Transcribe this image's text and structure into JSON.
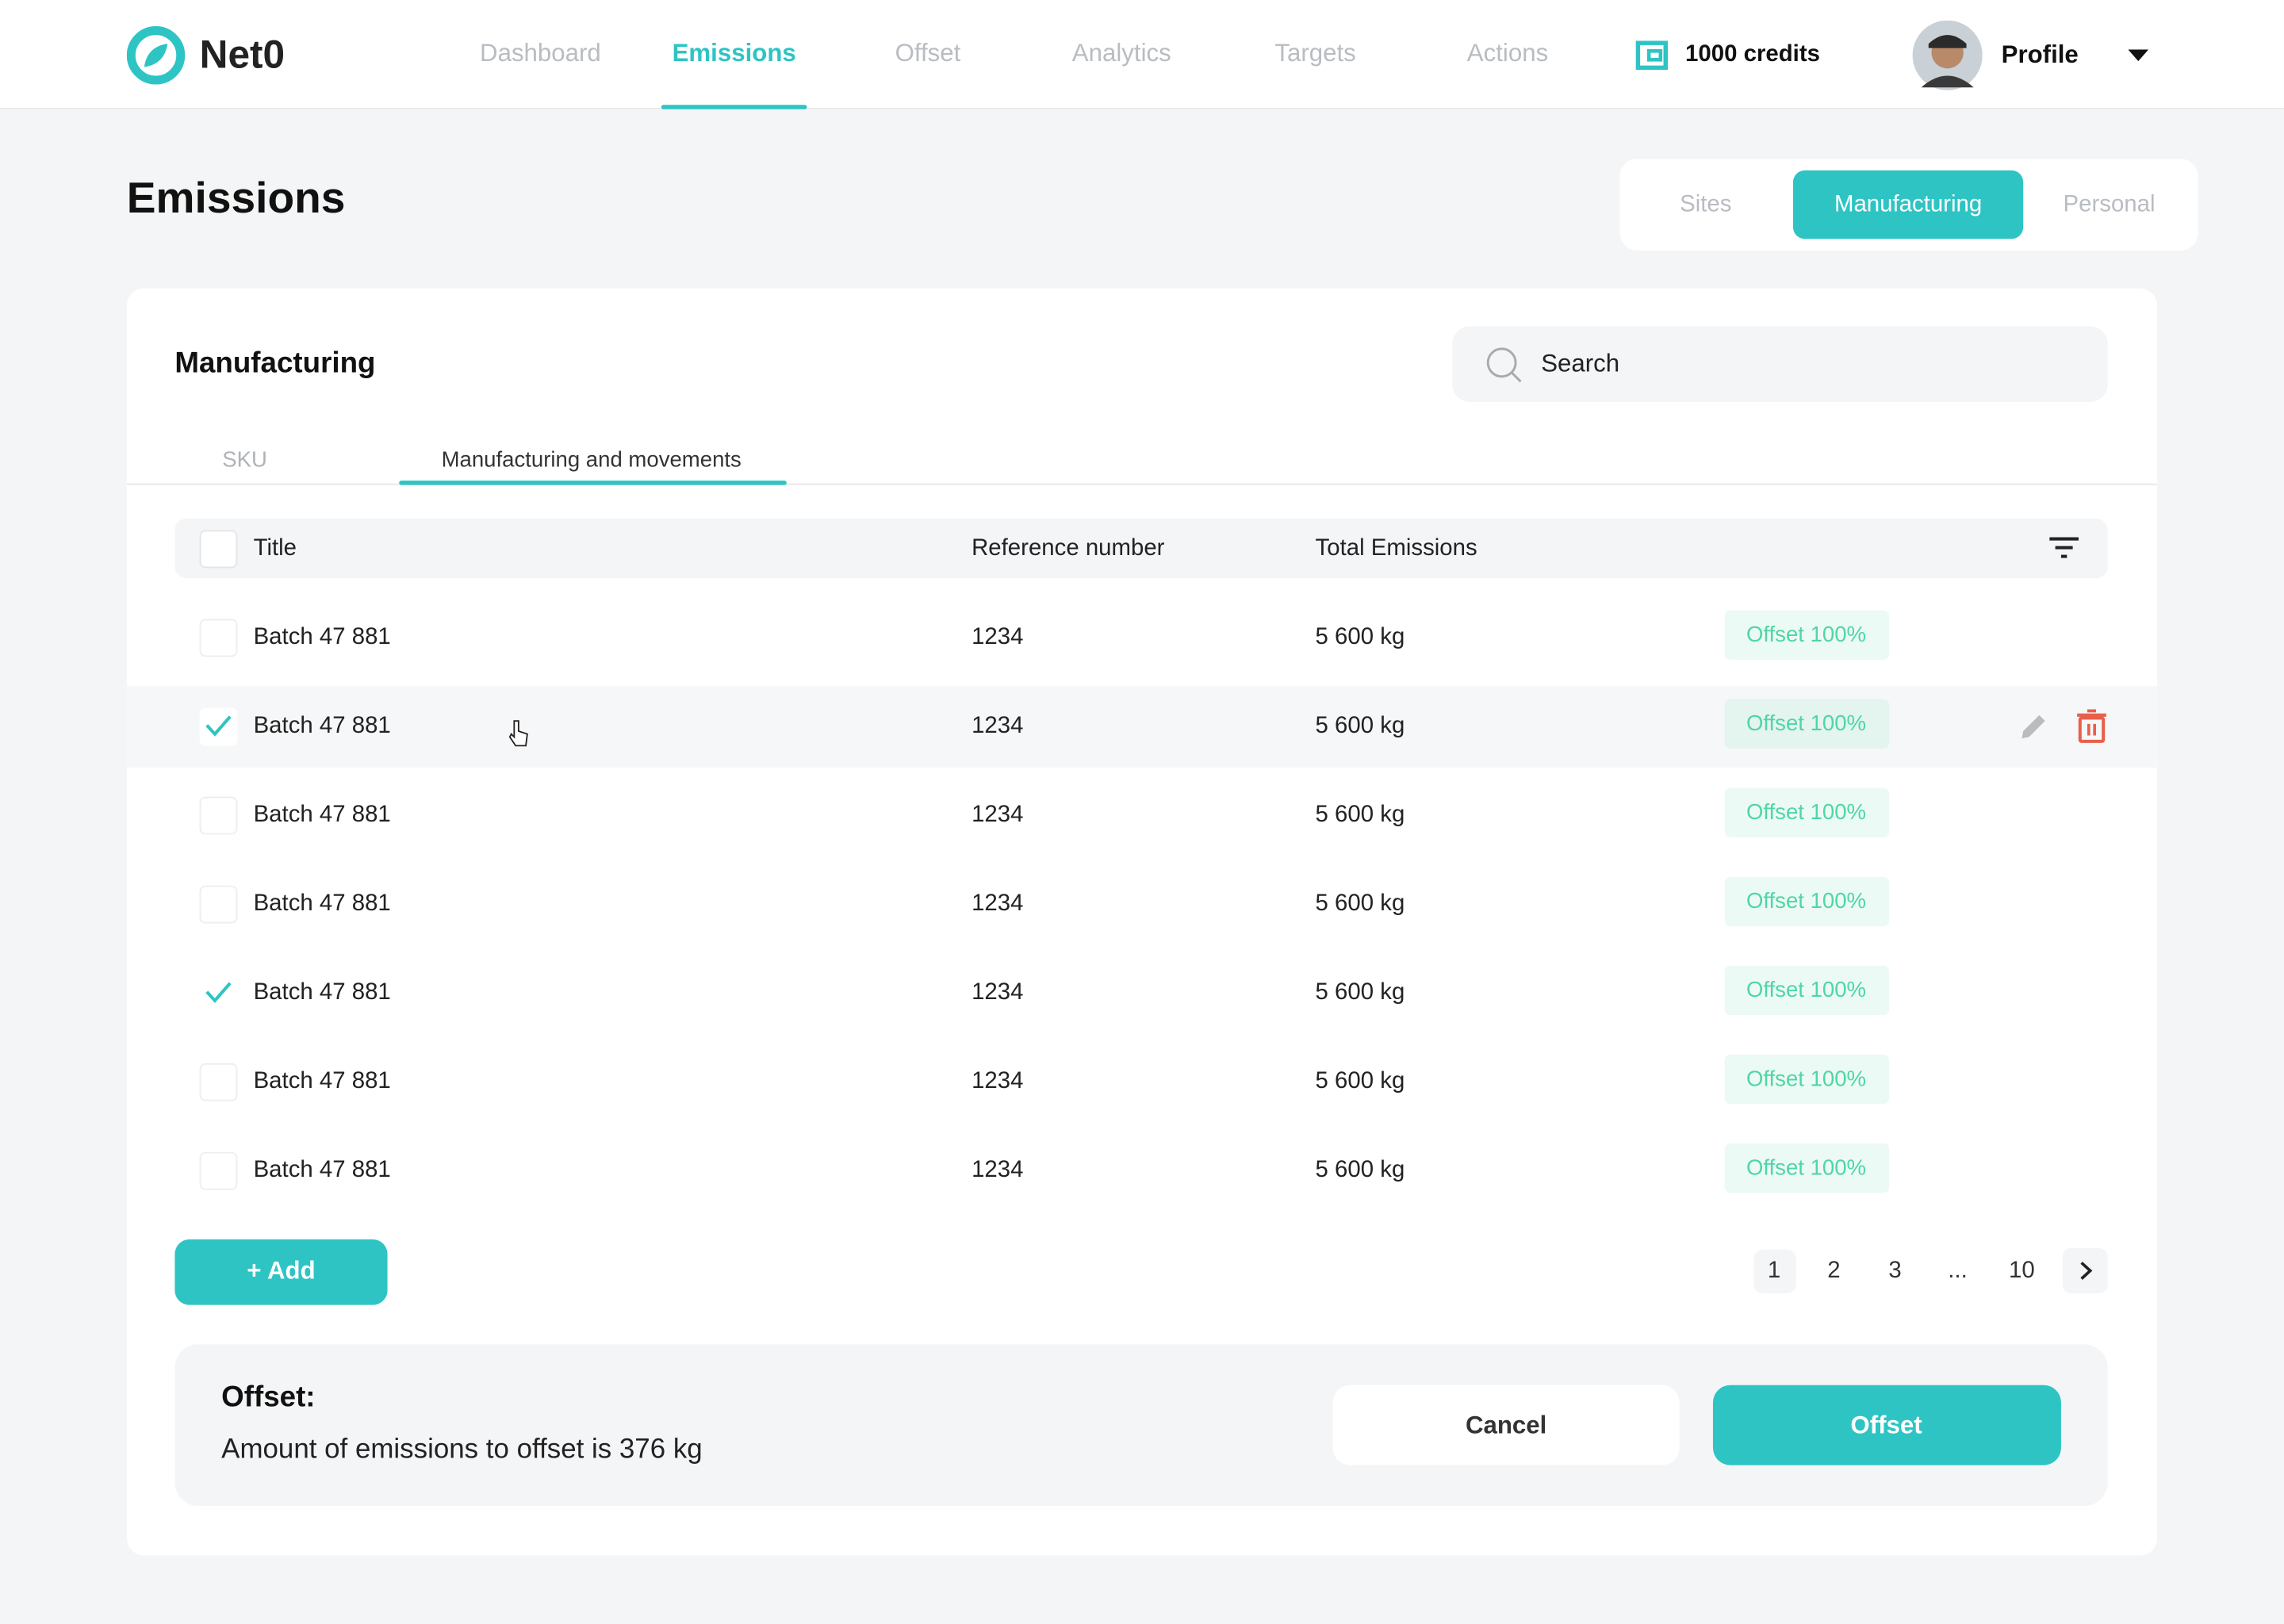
{
  "nav": {
    "logo": "Net0",
    "items": [
      "Dashboard",
      "Emissions",
      "Offset",
      "Analytics",
      "Targets",
      "Actions"
    ],
    "active": 1,
    "credits": "1000 credits",
    "profile": "Profile"
  },
  "page": {
    "title": "Emissions",
    "segments": [
      "Sites",
      "Manufacturing",
      "Personal"
    ],
    "active_segment": 1
  },
  "card": {
    "title": "Manufacturing",
    "search_placeholder": "Search",
    "tabs": [
      "SKU",
      "Manufacturing and movements"
    ],
    "active_tab": 1
  },
  "table": {
    "columns": [
      "Title",
      "Reference number",
      "Total Emissions"
    ],
    "rows": [
      {
        "title": "Batch 47 881",
        "reference": "1234",
        "emissions": "5 600 kg",
        "status": "Offset 100%",
        "checked": false,
        "hovered": false
      },
      {
        "title": "Batch 47 881",
        "reference": "1234",
        "emissions": "5 600 kg",
        "status": "Offset 100%",
        "checked": true,
        "hovered": true
      },
      {
        "title": "Batch 47 881",
        "reference": "1234",
        "emissions": "5 600 kg",
        "status": "Offset 100%",
        "checked": false,
        "hovered": false
      },
      {
        "title": "Batch 47 881",
        "reference": "1234",
        "emissions": "5 600 kg",
        "status": "Offset 100%",
        "checked": false,
        "hovered": false
      },
      {
        "title": "Batch 47 881",
        "reference": "1234",
        "emissions": "5 600 kg",
        "status": "Offset 100%",
        "checked": true,
        "hovered": false
      },
      {
        "title": "Batch 47 881",
        "reference": "1234",
        "emissions": "5 600 kg",
        "status": "Offset 100%",
        "checked": false,
        "hovered": false
      },
      {
        "title": "Batch 47 881",
        "reference": "1234",
        "emissions": "5 600 kg",
        "status": "Offset 100%",
        "checked": false,
        "hovered": false
      }
    ]
  },
  "add_button": "+ Add",
  "pagination": {
    "pages": [
      "1",
      "2",
      "3",
      "...",
      "10"
    ],
    "current": 0
  },
  "offset_panel": {
    "title": "Offset:",
    "text": "Amount of emissions to offset is 376 kg",
    "cancel": "Cancel",
    "confirm": "Offset"
  }
}
